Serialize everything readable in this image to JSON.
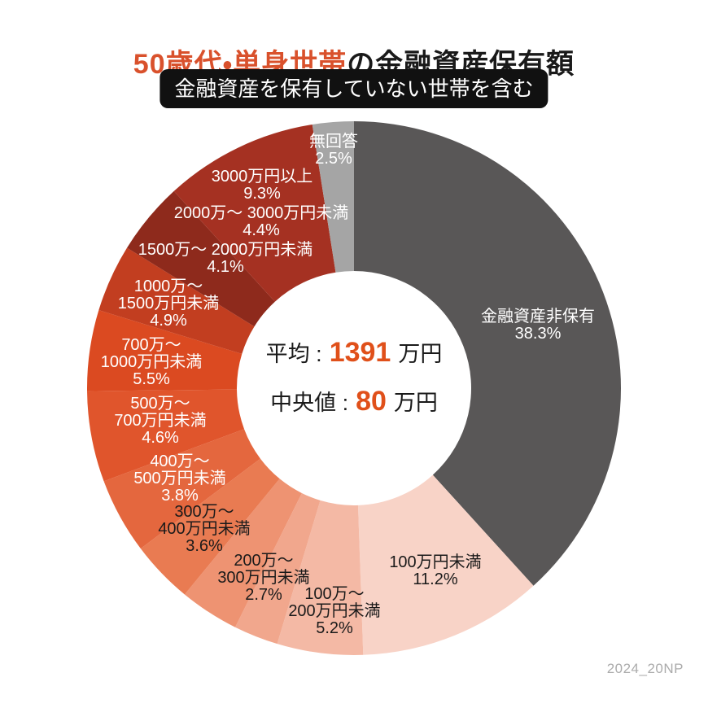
{
  "header": {
    "title_highlight": "50歳代・単身世帯",
    "title_rest": "の金融資産保有額",
    "badge": "金融資産を保有していない世帯を含む"
  },
  "center_stats": {
    "average_label": "平均 :",
    "average_value": "1391",
    "average_unit": "万円",
    "median_label": "中央値 :",
    "median_value": "80",
    "median_unit": "万円"
  },
  "footer": {
    "watermark": "2024_20NP"
  },
  "colors": {
    "accent-orange": "#d9512c",
    "number-orange": "#e0501a",
    "badge-bg": "#111111",
    "text-dark": "#1a1a1a",
    "text-light": "#ffffff",
    "watermark-gray": "#ababab",
    "background": "#ffffff"
  },
  "chart_data": {
    "type": "pie",
    "variant": "donut",
    "title": "50歳代・単身世帯の金融資産保有額",
    "subtitle": "金融資産を保有していない世帯を含む",
    "start_angle": "top",
    "direction": "clockwise",
    "unit": "%",
    "segments": [
      {
        "label": "金融資産非保有",
        "value": 38.3,
        "pct": "38.3%",
        "lines": [
          "金融資産非保有"
        ],
        "color": "#595757",
        "text_color": "#1a1a1a00",
        "label_text_color": "#ffffff"
      },
      {
        "label": "100万円未満",
        "value": 11.2,
        "pct": "11.2%",
        "lines": [
          "100万円未満"
        ],
        "color": "#f8d3c7",
        "label_text_color": "#1a1a1a"
      },
      {
        "label": "100万～200万円未満",
        "value": 5.2,
        "pct": "5.2%",
        "lines": [
          "100万～",
          "200万円未満"
        ],
        "color": "#f4b9a5",
        "label_text_color": "#1a1a1a"
      },
      {
        "label": "200万～300万円未満",
        "value": 2.7,
        "pct": "2.7%",
        "lines": [
          "200万～",
          "300万円未満"
        ],
        "color": "#f1a78d",
        "label_text_color": "#1a1a1a"
      },
      {
        "label": "300万～400万円未満",
        "value": 3.6,
        "pct": "3.6%",
        "lines": [
          "300万～",
          "400万円未満"
        ],
        "color": "#ee9372",
        "label_text_color": "#1a1a1a"
      },
      {
        "label": "400万～500万円未満",
        "value": 3.8,
        "pct": "3.8%",
        "lines": [
          "400万～",
          "500万円未満"
        ],
        "color": "#e97b52",
        "label_text_color": "#ffffff"
      },
      {
        "label": "500万～700万円未満",
        "value": 4.6,
        "pct": "4.6%",
        "lines": [
          "500万～",
          "700万円未満"
        ],
        "color": "#e4673e",
        "label_text_color": "#ffffff"
      },
      {
        "label": "700万～1000万円未満",
        "value": 5.5,
        "pct": "5.5%",
        "lines": [
          "700万～",
          "1000万円未満"
        ],
        "color": "#e0552c",
        "label_text_color": "#ffffff"
      },
      {
        "label": "1000万～1500万円未満",
        "value": 4.9,
        "pct": "4.9%",
        "lines": [
          "1000万～",
          "1500万円未満"
        ],
        "color": "#db4a21",
        "label_text_color": "#ffffff"
      },
      {
        "label": "1500万～2000万円未満",
        "value": 4.1,
        "pct": "4.1%",
        "lines": [
          "1500万～ 2000万円未満"
        ],
        "color": "#c23e20",
        "label_text_color": "#ffffff"
      },
      {
        "label": "2000万～3000万円未満",
        "value": 4.4,
        "pct": "4.4%",
        "lines": [
          "2000万～ 3000万円未満"
        ],
        "color": "#8e2a1c",
        "label_text_color": "#ffffff"
      },
      {
        "label": "3000万円以上",
        "value": 9.3,
        "pct": "9.3%",
        "lines": [
          "3000万円以上"
        ],
        "color": "#a53122",
        "label_text_color": "#ffffff"
      },
      {
        "label": "無回答",
        "value": 2.5,
        "pct": "2.5%",
        "lines": [
          "無回答"
        ],
        "color": "#a5a5a5",
        "label_text_color": "#ffffff"
      }
    ]
  }
}
